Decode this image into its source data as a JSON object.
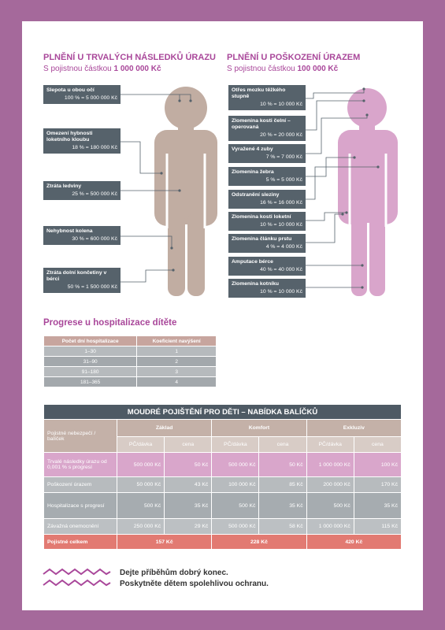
{
  "left_section": {
    "title": "PLNĚNÍ U TRVALÝCH NÁSLEDKŮ ÚRAZU",
    "subtitle": "S pojistnou částkou",
    "subtitle_amount": "1 000 000 Kč",
    "items": [
      {
        "label": "Slepota u obou očí",
        "value": "100 % = 5 000 000 Kč"
      },
      {
        "label": "Omezení hybnosti loketního kloubu",
        "value": "18 % = 180 000 Kč"
      },
      {
        "label": "Ztráta ledviny",
        "value": "25 % = 500 000 Kč"
      },
      {
        "label": "Nehybnost kolena",
        "value": "30 % = 600 000 Kč"
      },
      {
        "label": "Ztráta dolní končetiny v bérci",
        "value": "50 % = 1 500 000 Kč"
      }
    ]
  },
  "right_section": {
    "title": "PLNĚNÍ U POŠKOZENÍ ÚRAZEM",
    "subtitle": "S pojistnou částkou",
    "subtitle_amount": "100 000 Kč",
    "items": [
      {
        "label": "Otřes mozku těžkého stupně",
        "value": "10 % = 10 000 Kč"
      },
      {
        "label": "Zlomenina kosti čelní – operovaná",
        "value": "20 % = 20 000 Kč"
      },
      {
        "label": "Vyražené 4 zuby",
        "value": "7 % = 7 000 Kč"
      },
      {
        "label": "Zlomenina žebra",
        "value": "5 % = 5 000 Kč"
      },
      {
        "label": "Odstranění sleziny",
        "value": "16 % = 16 000 Kč"
      },
      {
        "label": "Zlomenina kosti loketní",
        "value": "10 % = 10 000 Kč"
      },
      {
        "label": "Zlomenina článku prstu",
        "value": "4 % = 4 000 Kč"
      },
      {
        "label": "Amputace bérce",
        "value": "40 % = 40 000 Kč"
      },
      {
        "label": "Zlomenina kotníku",
        "value": "10 % = 10 000 Kč"
      }
    ]
  },
  "progression_table": {
    "title": "Progrese u hospitalizace dítěte",
    "headers": [
      "Počet dní hospitalizace",
      "Koeficient navýšení"
    ],
    "rows": [
      [
        "1–30",
        "1"
      ],
      [
        "31–90",
        "2"
      ],
      [
        "91–180",
        "3"
      ],
      [
        "181–365",
        "4"
      ]
    ]
  },
  "package_table": {
    "title": "MOUDRÉ POJIŠTĚNÍ PRO DĚTI – NABÍDKA BALÍČKŮ",
    "corner_header": "Pojistné nebezpečí / balíček",
    "packages": [
      "Základ",
      "Komfort",
      "Exkluziv"
    ],
    "subheaders": [
      "PČ/dávka",
      "cena"
    ],
    "rows": [
      {
        "label": "Trvalé následky úrazu od 0,001 % s progresí",
        "cells": [
          "500 000 Kč",
          "50 Kč",
          "500 000 Kč",
          "50 Kč",
          "1 000 000 Kč",
          "100 Kč"
        ]
      },
      {
        "label": "Poškození úrazem",
        "cells": [
          "50 000 Kč",
          "43 Kč",
          "100 000 Kč",
          "85 Kč",
          "200 000 Kč",
          "170 Kč"
        ]
      },
      {
        "label": "Hospitalizace s progresí",
        "cells": [
          "500 Kč",
          "35 Kč",
          "500 Kč",
          "35 Kč",
          "500 Kč",
          "35 Kč"
        ]
      },
      {
        "label": "Závažná onemocnění",
        "cells": [
          "250 000 Kč",
          "29 Kč",
          "500 000 Kč",
          "58 Kč",
          "1 000 000 Kč",
          "115 Kč"
        ]
      }
    ],
    "total": {
      "label": "Pojistné celkem",
      "values": [
        "157 Kč",
        "228 Kč",
        "420 Kč"
      ]
    }
  },
  "footer": {
    "lines": [
      "Dejte příběhům dobrý konec.",
      "Poskytněte dětem spolehlivou ochranu."
    ]
  }
}
